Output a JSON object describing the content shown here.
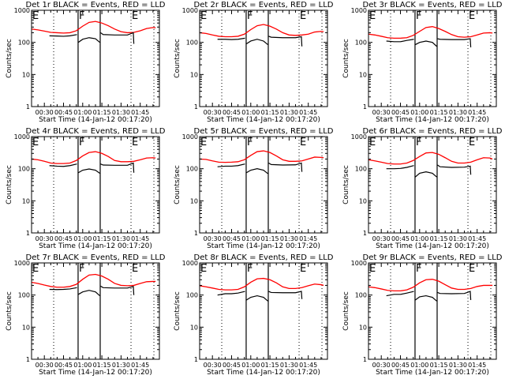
{
  "chart_data": [
    {
      "type": "line",
      "title": "Det 1r BLACK = Events, RED = LLD",
      "red": [
        260,
        245,
        225,
        205,
        200,
        195,
        200,
        230,
        320,
        420,
        450,
        400,
        330,
        260,
        215,
        200,
        205,
        230,
        270,
        290,
        285
      ],
      "black": [
        [
          160,
          158,
          155,
          160,
          175
        ],
        [
          100,
          125,
          140,
          130,
          100
        ],
        [
          200,
          175,
          170,
          170,
          200,
          90
        ]
      ]
    },
    {
      "type": "line",
      "title": "Det 2r BLACK = Events, RED = LLD",
      "red": [
        200,
        190,
        170,
        155,
        150,
        150,
        155,
        180,
        250,
        330,
        360,
        320,
        260,
        200,
        170,
        165,
        170,
        180,
        210,
        220,
        215
      ],
      "black": [
        [
          125,
          125,
          122,
          125,
          135
        ],
        [
          90,
          110,
          125,
          110,
          85
        ],
        [
          155,
          145,
          140,
          140,
          150,
          75
        ]
      ]
    },
    {
      "type": "line",
      "title": "Det 3r BLACK = Events, RED = LLD",
      "red": [
        180,
        170,
        155,
        140,
        135,
        135,
        140,
        165,
        220,
        290,
        310,
        270,
        220,
        175,
        150,
        145,
        150,
        170,
        195,
        200,
        195
      ],
      "black": [
        [
          110,
          105,
          105,
          115,
          125
        ],
        [
          85,
          100,
          110,
          100,
          75
        ],
        [
          130,
          125,
          122,
          122,
          130,
          70
        ]
      ]
    },
    {
      "type": "line",
      "title": "Det 4r BLACK = Events, RED = LLD",
      "red": [
        200,
        190,
        170,
        150,
        145,
        145,
        150,
        180,
        250,
        320,
        340,
        300,
        240,
        180,
        165,
        165,
        170,
        190,
        215,
        220,
        215
      ],
      "black": [
        [
          125,
          120,
          118,
          125,
          140
        ],
        [
          75,
          90,
          98,
          90,
          72
        ],
        [
          140,
          130,
          128,
          128,
          150,
          75
        ]
      ]
    },
    {
      "type": "line",
      "title": "Det 5r BLACK = Events, RED = LLD",
      "red": [
        200,
        195,
        175,
        160,
        158,
        160,
        165,
        190,
        260,
        340,
        360,
        320,
        250,
        190,
        170,
        170,
        175,
        200,
        230,
        225,
        220
      ],
      "black": [
        [
          115,
          120,
          120,
          125,
          140
        ],
        [
          75,
          90,
          100,
          90,
          70
        ],
        [
          150,
          135,
          130,
          132,
          150,
          80
        ]
      ]
    },
    {
      "type": "line",
      "title": "Det 6r BLACK = Events, RED = LLD",
      "red": [
        190,
        175,
        160,
        145,
        140,
        140,
        150,
        180,
        240,
        310,
        320,
        280,
        220,
        170,
        150,
        150,
        160,
        190,
        220,
        215,
        200
      ],
      "black": [
        [
          100,
          100,
          102,
          110,
          125
        ],
        [
          55,
          72,
          80,
          72,
          55
        ],
        [
          130,
          115,
          110,
          112,
          120,
          65
        ]
      ]
    },
    {
      "type": "line",
      "title": "Det 7r BLACK = Events, RED = LLD",
      "red": [
        250,
        230,
        205,
        185,
        175,
        175,
        185,
        215,
        310,
        420,
        440,
        390,
        310,
        230,
        200,
        195,
        200,
        230,
        260,
        265,
        265
      ],
      "black": [
        [
          150,
          148,
          150,
          155,
          170
        ],
        [
          105,
          125,
          140,
          125,
          95
        ],
        [
          190,
          170,
          165,
          165,
          185,
          100
        ]
      ]
    },
    {
      "type": "line",
      "title": "Det 8r BLACK = Events, RED = LLD",
      "red": [
        195,
        180,
        165,
        150,
        145,
        145,
        150,
        180,
        250,
        320,
        330,
        300,
        240,
        180,
        160,
        160,
        170,
        195,
        220,
        210,
        200
      ],
      "black": [
        [
          100,
          110,
          110,
          115,
          130
        ],
        [
          70,
          85,
          95,
          85,
          65
        ],
        [
          130,
          120,
          118,
          118,
          130,
          75
        ]
      ]
    },
    {
      "type": "line",
      "title": "Det 9r BLACK = Events, RED = LLD",
      "red": [
        180,
        170,
        155,
        140,
        135,
        135,
        145,
        175,
        240,
        300,
        310,
        270,
        210,
        165,
        150,
        150,
        160,
        185,
        200,
        200,
        200
      ],
      "black": [
        [
          95,
          105,
          105,
          115,
          130
        ],
        [
          70,
          88,
          95,
          85,
          65
        ],
        [
          120,
          112,
          110,
          112,
          130,
          70
        ]
      ]
    }
  ],
  "shared": {
    "red_times_min": [
      20,
      25,
      30,
      35,
      40,
      45,
      50,
      55,
      60,
      65,
      70,
      75,
      80,
      85,
      90,
      95,
      100,
      105,
      110,
      115,
      117
    ],
    "black_times_min": [
      [
        34,
        40,
        45,
        50,
        55.5
      ],
      [
        56.6,
        60,
        65,
        70,
        73.4
      ],
      [
        74,
        76,
        85,
        95,
        99.6,
        100
      ]
    ],
    "xlim_min": [
      20,
      120
    ],
    "ylim": [
      1,
      1000
    ],
    "yscale": "log",
    "xlabel": "Start Time (14-Jan-12 00:17:20)",
    "ylabel": "Counts/sec",
    "xticks": [
      {
        "min": 30,
        "label": "00:30"
      },
      {
        "min": 45,
        "label": "00:45"
      },
      {
        "min": 60,
        "label": "01:00"
      },
      {
        "min": 75,
        "label": "01:15"
      },
      {
        "min": 90,
        "label": "01:30"
      },
      {
        "min": 105,
        "label": "01:45"
      }
    ],
    "yticks": [
      {
        "v": 1,
        "label": "1"
      },
      {
        "v": 10,
        "label": "10"
      },
      {
        "v": 100,
        "label": "100"
      },
      {
        "v": 1000,
        "label": "1000"
      }
    ],
    "event_lines": [
      {
        "min": 37.3,
        "style": "dotted"
      },
      {
        "min": 56.4,
        "style": "solid"
      },
      {
        "min": 73.7,
        "style": "solid"
      },
      {
        "min": 97.8,
        "style": "dotted"
      },
      {
        "min": 115.7,
        "style": "dotted"
      }
    ],
    "event_markers": [
      {
        "min": 20,
        "label": "E"
      },
      {
        "min": 56.4,
        "label": "F"
      },
      {
        "min": 97.8,
        "label": "E"
      }
    ],
    "colors": {
      "red": "#ff0000",
      "black": "#000000"
    },
    "legend": "none",
    "grid": false
  }
}
